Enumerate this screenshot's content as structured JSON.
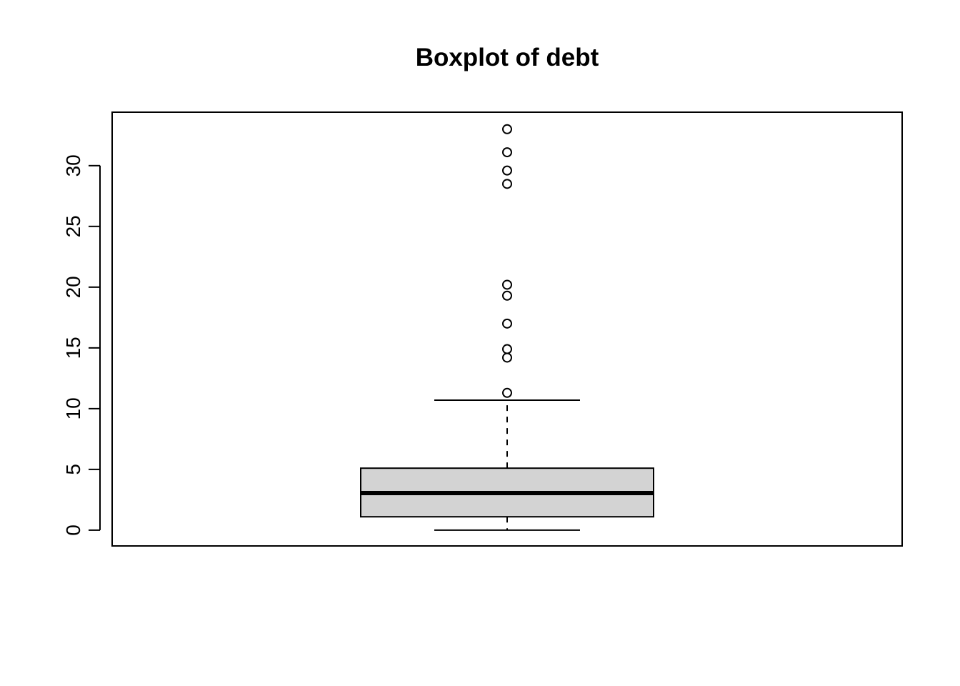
{
  "chart_data": {
    "type": "boxplot",
    "title": "Boxplot of debt",
    "xlabel": "",
    "ylabel": "",
    "ylim": [
      -1.3,
      34.4
    ],
    "yticks": [
      0,
      5,
      10,
      15,
      20,
      25,
      30
    ],
    "yticklabels": [
      "0",
      "5",
      "10",
      "15",
      "20",
      "25",
      "30"
    ],
    "grid": false,
    "box": {
      "whisker_low": 0.0,
      "q1": 1.1,
      "median": 3.05,
      "q3": 5.1,
      "whisker_high": 10.7
    },
    "outliers": [
      11.3,
      14.2,
      14.9,
      17.0,
      19.3,
      20.2,
      28.5,
      29.6,
      31.1,
      33.0
    ],
    "colors": {
      "box_fill": "#d3d3d3",
      "stroke": "#000000"
    }
  }
}
